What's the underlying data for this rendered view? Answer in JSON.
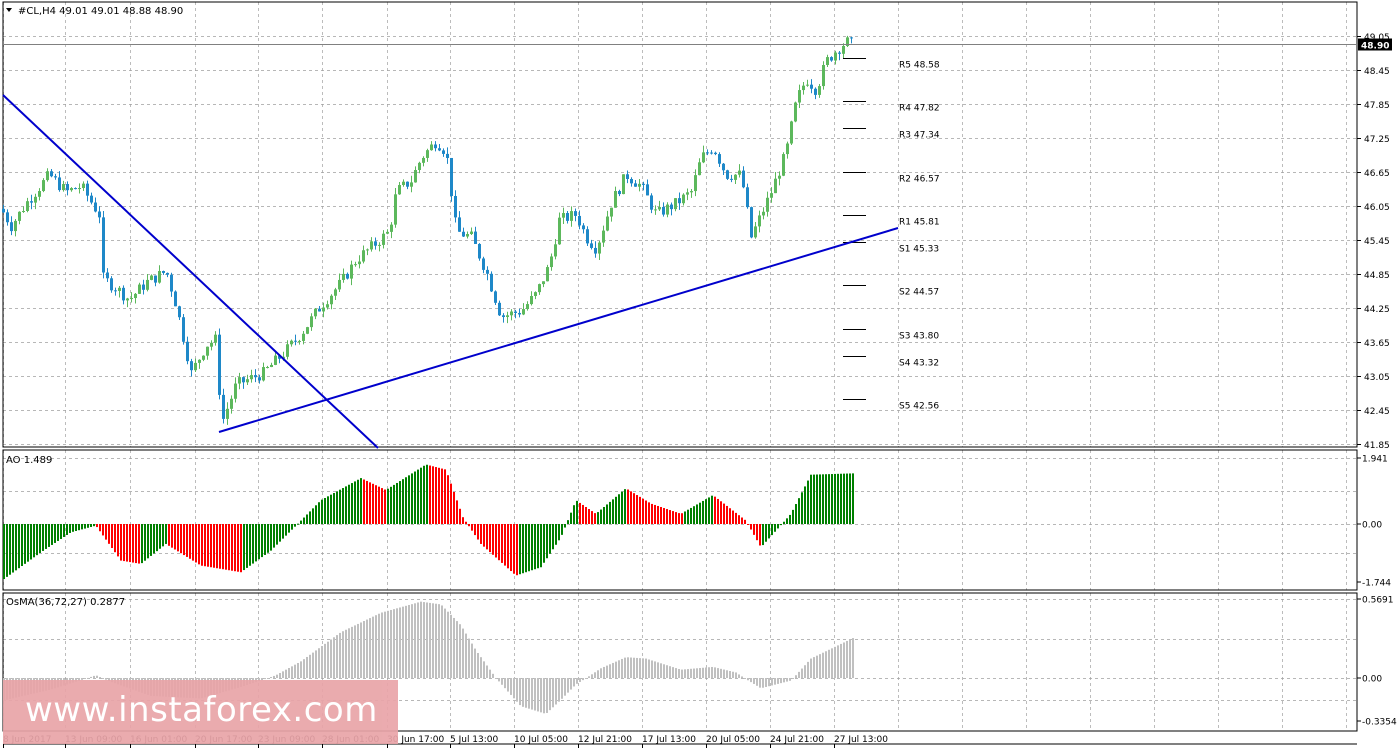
{
  "window": {
    "symbol_label": "#CL,H4",
    "ohlc_label": "49.01 49.01 48.88 48.90",
    "current_price": "48.90"
  },
  "pivot_levels": [
    {
      "label": "R5 48.58",
      "value": 48.58
    },
    {
      "label": "R4 47.82",
      "value": 47.82
    },
    {
      "label": "R3 47.34",
      "value": 47.34
    },
    {
      "label": "R2 46.57",
      "value": 46.57
    },
    {
      "label": "R1 45.81",
      "value": 45.81
    },
    {
      "label": "S1 45.33",
      "value": 45.33
    },
    {
      "label": "S2 44.57",
      "value": 44.57
    },
    {
      "label": "S3 43.80",
      "value": 43.8
    },
    {
      "label": "S4 43.32",
      "value": 43.32
    },
    {
      "label": "S5 42.56",
      "value": 42.56
    }
  ],
  "x_axis": {
    "ticks": [
      "8 Jun 2017",
      "13 Jun 09:00",
      "16 Jun 01:00",
      "20 Jun 17:00",
      "23 Jun 09:00",
      "28 Jun 01:00",
      "30 Jun 17:00",
      "5 Jul 13:00",
      "10 Jul 05:00",
      "12 Jul 21:00",
      "17 Jul 13:00",
      "20 Jul 05:00",
      "24 Jul 21:00",
      "27 Jul 13:00"
    ]
  },
  "panels": {
    "ao_label": "AO 1.489",
    "osma_label": "OsMA(36,72,27) 0.2877"
  },
  "watermark": "www.instaforex.com",
  "colors": {
    "bull": "#5cb85c",
    "bear": "#1e88c8",
    "trendline": "#0000cc",
    "ao_up": "#008000",
    "ao_down": "#ff0000",
    "osma": "#c0c0c0",
    "grid": "#a0a0a0"
  },
  "chart_data": [
    {
      "type": "candlestick",
      "title": "#CL,H4",
      "ylim": [
        41.85,
        49.3
      ],
      "y_ticks": [
        49.05,
        48.45,
        47.85,
        47.25,
        46.65,
        46.05,
        45.45,
        44.85,
        44.25,
        43.65,
        43.05,
        42.45,
        41.85
      ],
      "close_path": [
        [
          0,
          46.0
        ],
        [
          10,
          45.7
        ],
        [
          25,
          46.1
        ],
        [
          48,
          46.6
        ],
        [
          65,
          46.3
        ],
        [
          80,
          46.4
        ],
        [
          98,
          45.9
        ],
        [
          100,
          44.8
        ],
        [
          115,
          44.6
        ],
        [
          128,
          44.4
        ],
        [
          145,
          44.7
        ],
        [
          165,
          44.9
        ],
        [
          175,
          44.3
        ],
        [
          190,
          43.1
        ],
        [
          205,
          43.6
        ],
        [
          215,
          43.7
        ],
        [
          220,
          42.2
        ],
        [
          235,
          42.9
        ],
        [
          262,
          43.1
        ],
        [
          285,
          43.5
        ],
        [
          300,
          43.8
        ],
        [
          320,
          44.3
        ],
        [
          340,
          44.7
        ],
        [
          355,
          45.1
        ],
        [
          375,
          45.4
        ],
        [
          388,
          45.6
        ],
        [
          395,
          46.3
        ],
        [
          410,
          46.5
        ],
        [
          420,
          46.9
        ],
        [
          435,
          47.2
        ],
        [
          445,
          47.0
        ],
        [
          455,
          45.6
        ],
        [
          470,
          45.5
        ],
        [
          485,
          44.9
        ],
        [
          500,
          44.1
        ],
        [
          520,
          44.2
        ],
        [
          535,
          44.5
        ],
        [
          548,
          45.0
        ],
        [
          558,
          45.8
        ],
        [
          575,
          45.9
        ],
        [
          585,
          45.5
        ],
        [
          595,
          45.3
        ],
        [
          610,
          46.1
        ],
        [
          625,
          46.6
        ],
        [
          640,
          46.4
        ],
        [
          655,
          45.9
        ],
        [
          675,
          46.1
        ],
        [
          690,
          46.3
        ],
        [
          700,
          46.9
        ],
        [
          712,
          47.1
        ],
        [
          725,
          46.6
        ],
        [
          740,
          46.6
        ],
        [
          750,
          45.5
        ],
        [
          770,
          46.3
        ],
        [
          785,
          47.0
        ],
        [
          795,
          47.9
        ],
        [
          805,
          48.3
        ],
        [
          815,
          48.1
        ],
        [
          825,
          48.6
        ],
        [
          835,
          48.8
        ],
        [
          845,
          48.95
        ],
        [
          852,
          48.9
        ]
      ]
    },
    {
      "type": "bar",
      "title": "AO 1.489",
      "ylim": [
        -1.744,
        1.941
      ],
      "y_ticks": [
        1.941,
        0.0,
        -1.744
      ],
      "current": 1.489,
      "shape": [
        [
          0,
          -1.72
        ],
        [
          40,
          -0.85
        ],
        [
          70,
          -0.25
        ],
        [
          95,
          -0.05
        ],
        [
          120,
          -1.1
        ],
        [
          140,
          -1.2
        ],
        [
          165,
          -0.6
        ],
        [
          200,
          -1.25
        ],
        [
          240,
          -1.45
        ],
        [
          270,
          -0.8
        ],
        [
          295,
          -0.05
        ],
        [
          320,
          0.7
        ],
        [
          360,
          1.35
        ],
        [
          385,
          1.0
        ],
        [
          425,
          1.75
        ],
        [
          445,
          1.6
        ],
        [
          462,
          0.2
        ],
        [
          480,
          -0.6
        ],
        [
          515,
          -1.55
        ],
        [
          540,
          -1.3
        ],
        [
          560,
          -0.4
        ],
        [
          575,
          0.7
        ],
        [
          595,
          0.3
        ],
        [
          625,
          1.05
        ],
        [
          650,
          0.6
        ],
        [
          680,
          0.3
        ],
        [
          712,
          0.85
        ],
        [
          745,
          0.1
        ],
        [
          760,
          -0.7
        ],
        [
          790,
          0.3
        ],
        [
          810,
          1.45
        ],
        [
          852,
          1.489
        ]
      ]
    },
    {
      "type": "bar",
      "title": "OsMA(36,72,27) 0.2877",
      "ylim": [
        -0.3354,
        0.5691
      ],
      "y_ticks": [
        0.5691,
        0.0,
        -0.3354
      ],
      "current": 0.2877,
      "shape": [
        [
          0,
          -0.18
        ],
        [
          50,
          -0.09
        ],
        [
          95,
          0.02
        ],
        [
          110,
          -0.03
        ],
        [
          150,
          -0.14
        ],
        [
          200,
          -0.16
        ],
        [
          240,
          -0.07
        ],
        [
          275,
          0.02
        ],
        [
          300,
          0.12
        ],
        [
          340,
          0.33
        ],
        [
          380,
          0.47
        ],
        [
          420,
          0.55
        ],
        [
          440,
          0.53
        ],
        [
          460,
          0.38
        ],
        [
          475,
          0.2
        ],
        [
          495,
          0.0
        ],
        [
          520,
          -0.22
        ],
        [
          545,
          -0.28
        ],
        [
          560,
          -0.17
        ],
        [
          575,
          -0.05
        ],
        [
          600,
          0.07
        ],
        [
          625,
          0.15
        ],
        [
          645,
          0.14
        ],
        [
          680,
          0.06
        ],
        [
          712,
          0.08
        ],
        [
          735,
          0.04
        ],
        [
          760,
          -0.08
        ],
        [
          790,
          -0.02
        ],
        [
          810,
          0.14
        ],
        [
          852,
          0.2877
        ]
      ]
    }
  ]
}
